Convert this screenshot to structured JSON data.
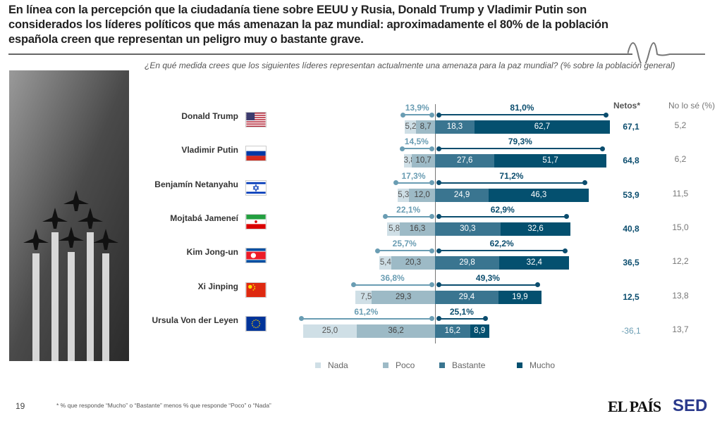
{
  "title": "En línea con la percepción que la ciudadanía tiene sobre EEUU y Rusia, Donald Trump y Vladimir Putin son considerados los líderes políticos que más amenazan la paz mundial: aproximadamente el 80% de la población española creen que representan un peligro muy o bastante grave.",
  "question": "¿En qué medida crees que los siguientes líderes representan actualmente una amenaza para la paz mundial? (% sobre la población general)",
  "headers": {
    "netos": "Netos*",
    "no_lo_se": "No lo sé (%)"
  },
  "footnote": "* % que responde “Mucho” o “Bastante” menos % que responde “Poco” o “Nada”",
  "page_number": "19",
  "logos": {
    "elpais": "EL PAÍS",
    "sed": "SED"
  },
  "colors": {
    "nada": "#cfdfe6",
    "poco": "#9dbac6",
    "bastante": "#3a7590",
    "mucho": "#04506f",
    "neg_label": "#6a9db3",
    "pos_label": "#0b4d6e"
  },
  "chart_data": {
    "type": "bar",
    "orientation": "horizontal diverging",
    "legend": [
      "Nada",
      "Poco",
      "Bastante",
      "Mucho"
    ],
    "legend_position": "bottom",
    "rows": [
      {
        "leader": "Donald Trump",
        "flag": "usa",
        "nada": 5.2,
        "poco": 8.7,
        "bastante": 18.3,
        "mucho": 62.7,
        "neg_total": "13,9%",
        "pos_total": "81,0%",
        "netos": "67,1",
        "no_lo_se": "5,2"
      },
      {
        "leader": "Vladimir Putin",
        "flag": "russia",
        "nada": 3.8,
        "poco": 10.7,
        "bastante": 27.6,
        "mucho": 51.7,
        "neg_total": "14,5%",
        "pos_total": "79,3%",
        "netos": "64,8",
        "no_lo_se": "6,2"
      },
      {
        "leader": "Benjamín Netanyahu",
        "flag": "israel",
        "nada": 5.3,
        "poco": 12.0,
        "bastante": 24.9,
        "mucho": 46.3,
        "neg_total": "17,3%",
        "pos_total": "71,2%",
        "netos": "53,9",
        "no_lo_se": "11,5"
      },
      {
        "leader": "Mojtabá Jameneí",
        "flag": "iran",
        "nada": 5.8,
        "poco": 16.3,
        "bastante": 30.3,
        "mucho": 32.6,
        "neg_total": "22,1%",
        "pos_total": "62,9%",
        "netos": "40,8",
        "no_lo_se": "15,0"
      },
      {
        "leader": "Kim Jong-un",
        "flag": "north-korea",
        "nada": 5.4,
        "poco": 20.3,
        "bastante": 29.8,
        "mucho": 32.4,
        "neg_total": "25,7%",
        "pos_total": "62,2%",
        "netos": "36,5",
        "no_lo_se": "12,2"
      },
      {
        "leader": "Xi Jinping",
        "flag": "china",
        "nada": 7.5,
        "poco": 29.3,
        "bastante": 29.4,
        "mucho": 19.9,
        "neg_total": "36,8%",
        "pos_total": "49,3%",
        "netos": "12,5",
        "no_lo_se": "13,8"
      },
      {
        "leader": "Ursula Von der Leyen",
        "flag": "eu",
        "nada": 25.0,
        "poco": 36.2,
        "bastante": 16.2,
        "mucho": 8.9,
        "neg_total": "61,2%",
        "pos_total": "25,1%",
        "netos": "-36,1",
        "no_lo_se": "13,7"
      }
    ]
  }
}
